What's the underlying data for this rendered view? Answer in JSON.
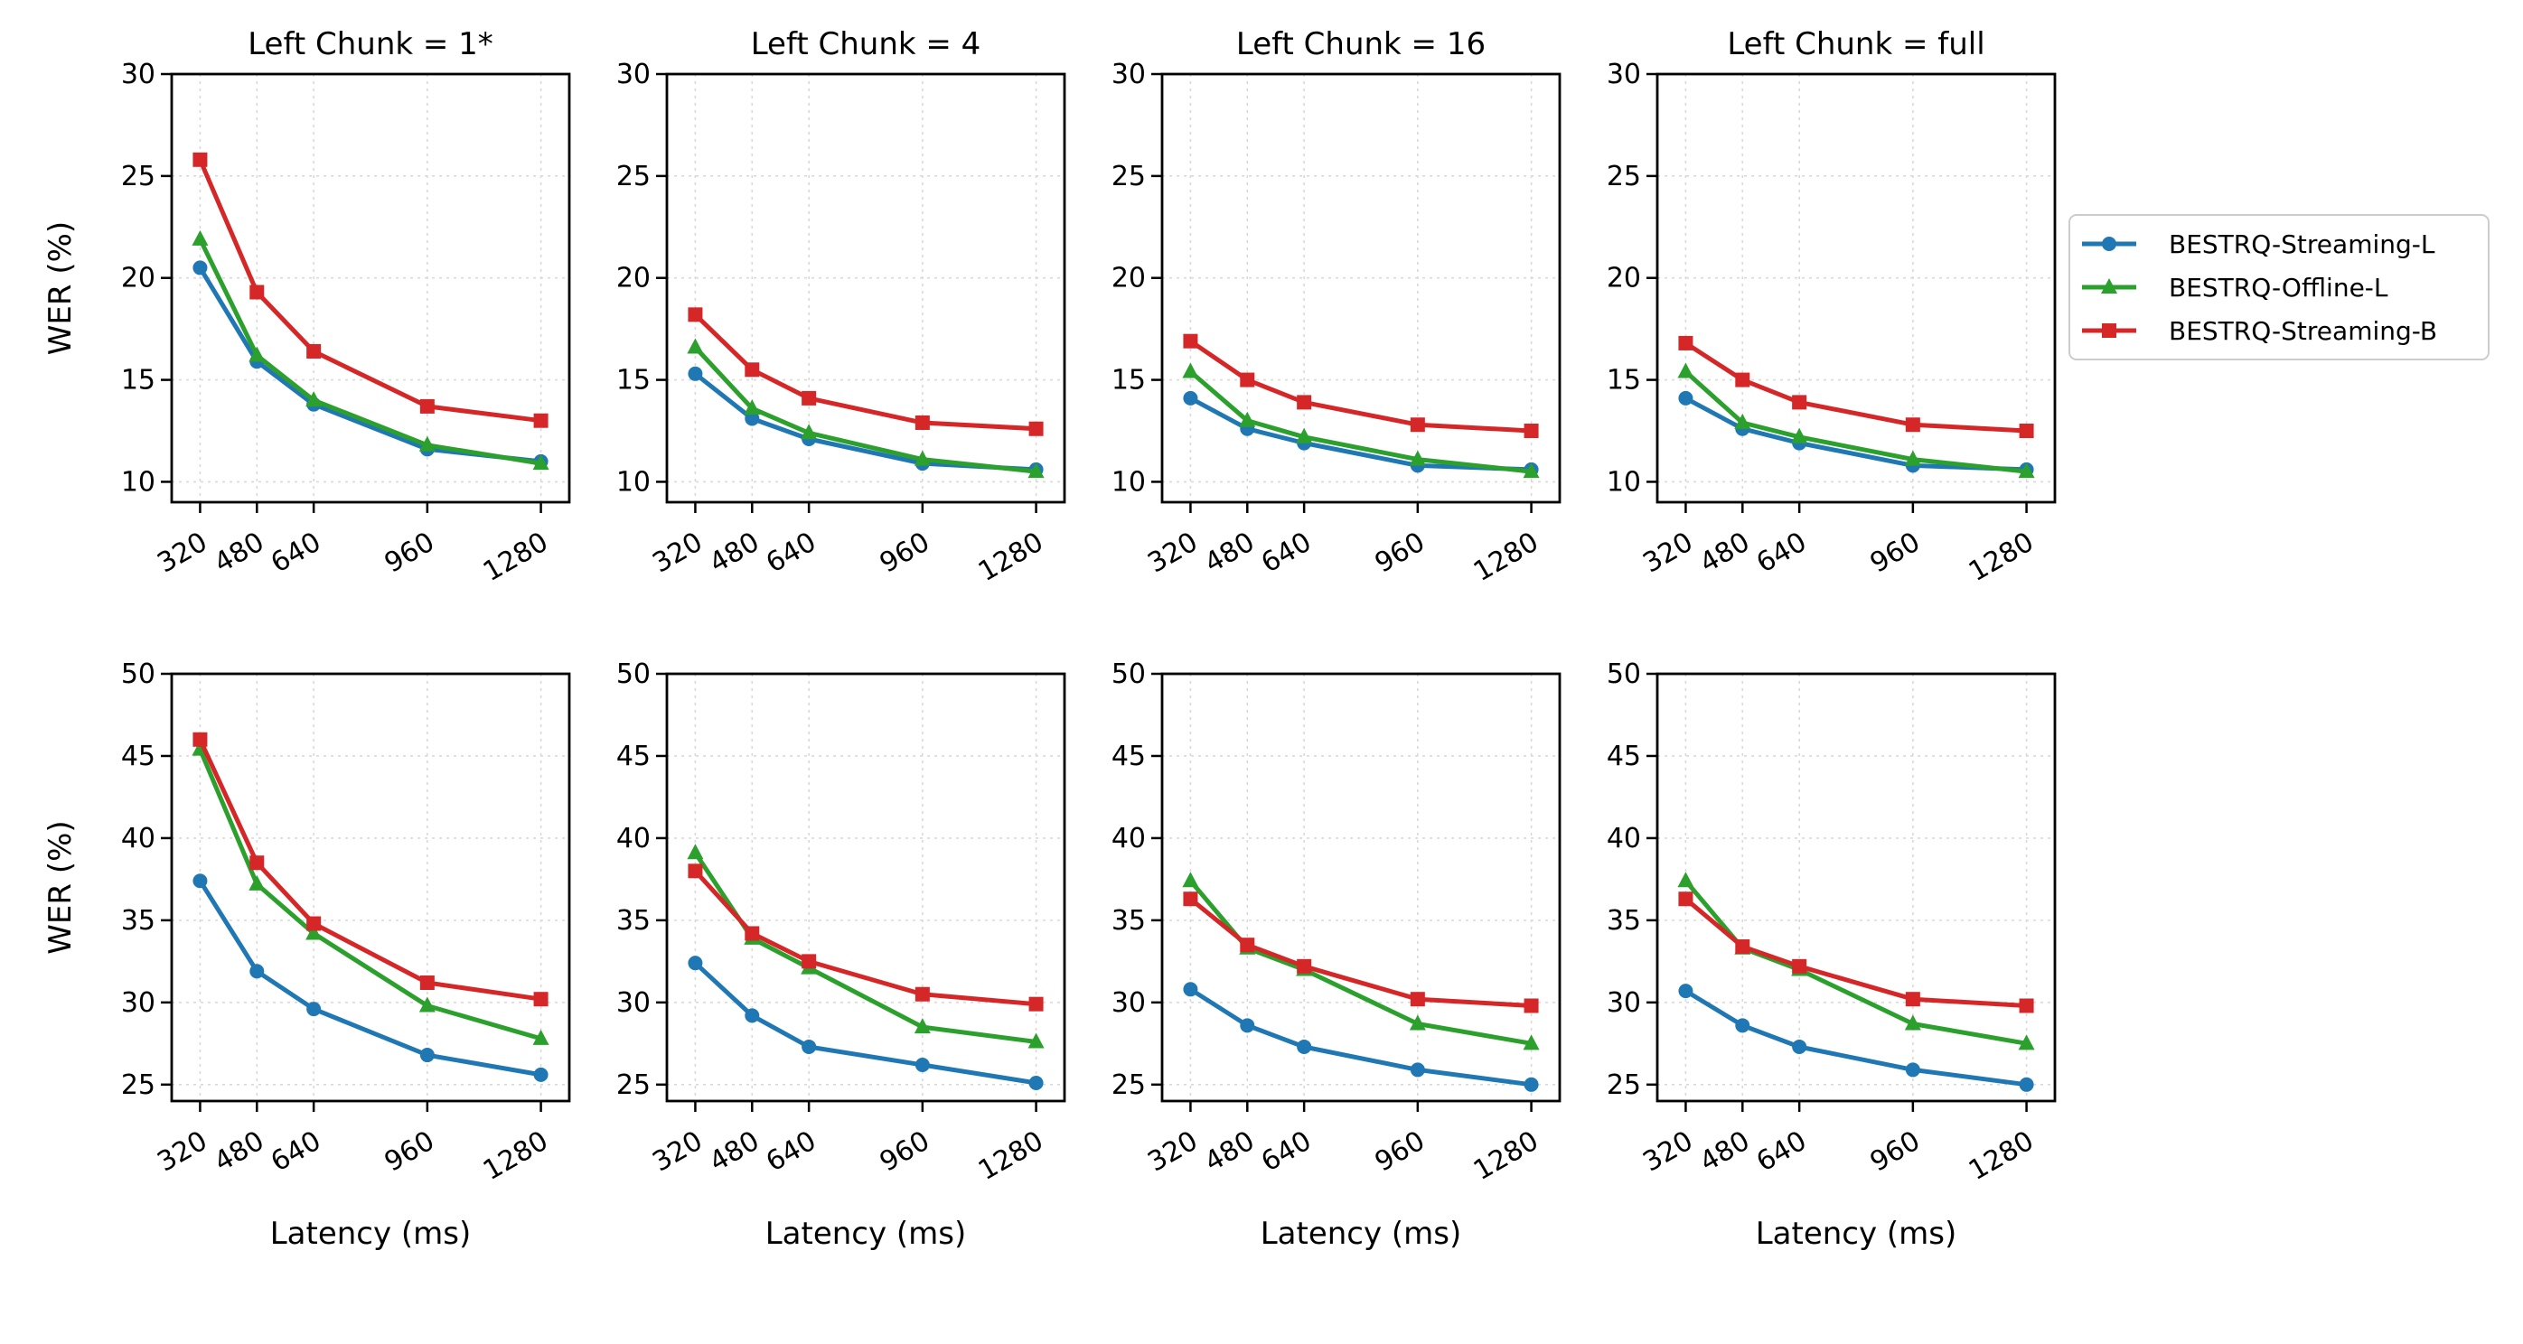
{
  "chart_data": {
    "type": "line",
    "x": [
      320,
      480,
      640,
      960,
      1280
    ],
    "xticks": [
      "320",
      "480",
      "640",
      "960",
      "1280"
    ],
    "xlabel": "Latency (ms)",
    "ylabel": "WER (%)",
    "grid": true,
    "legend": {
      "placement": "right",
      "entries": [
        {
          "name": "BESTRQ-Streaming-L",
          "color": "#1f77b4",
          "marker": "circle"
        },
        {
          "name": "BESTRQ-Offline-L",
          "color": "#2ca02c",
          "marker": "triangle"
        },
        {
          "name": "BESTRQ-Streaming-B",
          "color": "#d62728",
          "marker": "square"
        }
      ]
    },
    "rows": [
      {
        "ylim": [
          9,
          30
        ],
        "yticks": [
          10,
          15,
          20,
          25,
          30
        ],
        "panels": [
          {
            "title": "Left Chunk = 1*",
            "series": [
              {
                "name": "BESTRQ-Streaming-L",
                "values": [
                  20.5,
                  15.9,
                  13.8,
                  11.6,
                  11.0
                ]
              },
              {
                "name": "BESTRQ-Offline-L",
                "values": [
                  21.9,
                  16.2,
                  14.0,
                  11.8,
                  10.9
                ]
              },
              {
                "name": "BESTRQ-Streaming-B",
                "values": [
                  25.8,
                  19.3,
                  16.4,
                  13.7,
                  13.0
                ]
              }
            ]
          },
          {
            "title": "Left Chunk = 4",
            "series": [
              {
                "name": "BESTRQ-Streaming-L",
                "values": [
                  15.3,
                  13.1,
                  12.1,
                  10.9,
                  10.6
                ]
              },
              {
                "name": "BESTRQ-Offline-L",
                "values": [
                  16.6,
                  13.6,
                  12.4,
                  11.1,
                  10.5
                ]
              },
              {
                "name": "BESTRQ-Streaming-B",
                "values": [
                  18.2,
                  15.5,
                  14.1,
                  12.9,
                  12.6
                ]
              }
            ]
          },
          {
            "title": "Left Chunk = 16",
            "series": [
              {
                "name": "BESTRQ-Streaming-L",
                "values": [
                  14.1,
                  12.6,
                  11.9,
                  10.8,
                  10.6
                ]
              },
              {
                "name": "BESTRQ-Offline-L",
                "values": [
                  15.4,
                  13.0,
                  12.2,
                  11.1,
                  10.5
                ]
              },
              {
                "name": "BESTRQ-Streaming-B",
                "values": [
                  16.9,
                  15.0,
                  13.9,
                  12.8,
                  12.5
                ]
              }
            ]
          },
          {
            "title": "Left Chunk = full",
            "series": [
              {
                "name": "BESTRQ-Streaming-L",
                "values": [
                  14.1,
                  12.6,
                  11.9,
                  10.8,
                  10.6
                ]
              },
              {
                "name": "BESTRQ-Offline-L",
                "values": [
                  15.4,
                  12.9,
                  12.2,
                  11.1,
                  10.5
                ]
              },
              {
                "name": "BESTRQ-Streaming-B",
                "values": [
                  16.8,
                  15.0,
                  13.9,
                  12.8,
                  12.5
                ]
              }
            ]
          }
        ]
      },
      {
        "ylim": [
          24,
          50
        ],
        "yticks": [
          25,
          30,
          35,
          40,
          45,
          50
        ],
        "panels": [
          {
            "title": "",
            "series": [
              {
                "name": "BESTRQ-Streaming-L",
                "values": [
                  37.4,
                  31.9,
                  29.6,
                  26.8,
                  25.6
                ]
              },
              {
                "name": "BESTRQ-Offline-L",
                "values": [
                  45.4,
                  37.2,
                  34.2,
                  29.8,
                  27.8
                ]
              },
              {
                "name": "BESTRQ-Streaming-B",
                "values": [
                  46.0,
                  38.5,
                  34.8,
                  31.2,
                  30.2
                ]
              }
            ]
          },
          {
            "title": "",
            "series": [
              {
                "name": "BESTRQ-Streaming-L",
                "values": [
                  32.4,
                  29.2,
                  27.3,
                  26.2,
                  25.1
                ]
              },
              {
                "name": "BESTRQ-Offline-L",
                "values": [
                  39.1,
                  33.9,
                  32.1,
                  28.5,
                  27.6
                ]
              },
              {
                "name": "BESTRQ-Streaming-B",
                "values": [
                  38.0,
                  34.2,
                  32.5,
                  30.5,
                  29.9
                ]
              }
            ]
          },
          {
            "title": "",
            "series": [
              {
                "name": "BESTRQ-Streaming-L",
                "values": [
                  30.8,
                  28.6,
                  27.3,
                  25.9,
                  25.0
                ]
              },
              {
                "name": "BESTRQ-Offline-L",
                "values": [
                  37.4,
                  33.3,
                  32.0,
                  28.7,
                  27.5
                ]
              },
              {
                "name": "BESTRQ-Streaming-B",
                "values": [
                  36.3,
                  33.5,
                  32.2,
                  30.2,
                  29.8
                ]
              }
            ]
          },
          {
            "title": "",
            "series": [
              {
                "name": "BESTRQ-Streaming-L",
                "values": [
                  30.7,
                  28.6,
                  27.3,
                  25.9,
                  25.0
                ]
              },
              {
                "name": "BESTRQ-Offline-L",
                "values": [
                  37.4,
                  33.3,
                  32.0,
                  28.7,
                  27.5
                ]
              },
              {
                "name": "BESTRQ-Streaming-B",
                "values": [
                  36.3,
                  33.4,
                  32.2,
                  30.2,
                  29.8
                ]
              }
            ]
          }
        ]
      }
    ]
  }
}
